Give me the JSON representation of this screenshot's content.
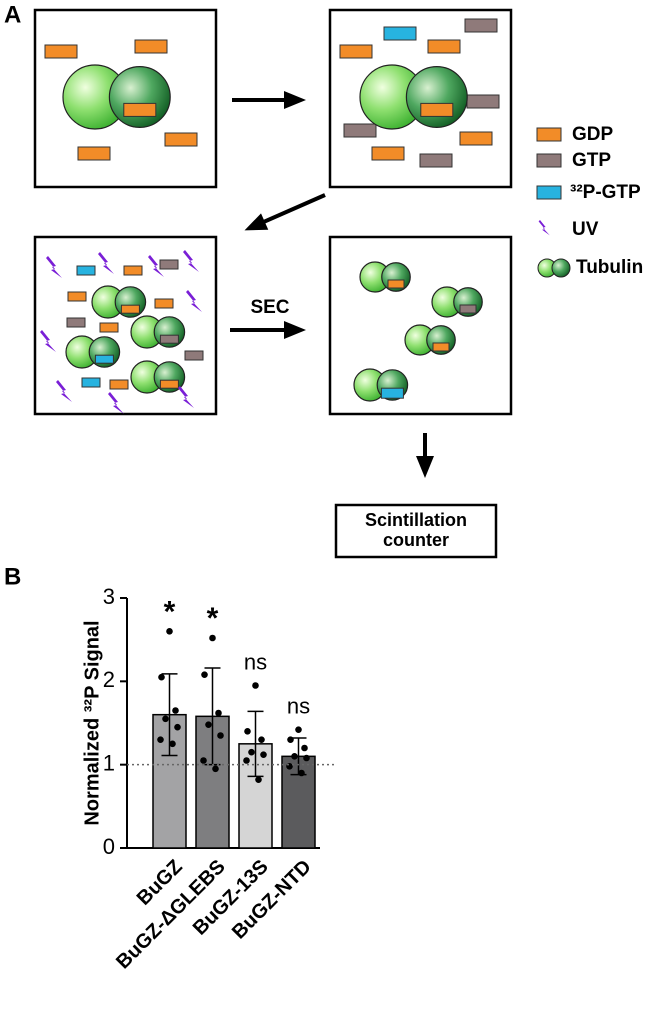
{
  "panel_a": {
    "label": "A",
    "legend": [
      "GDP",
      "GTP",
      "³²P-GTP",
      "UV",
      "Tubulin"
    ],
    "arrow_label": "SEC",
    "counter": [
      "Scintillation",
      "counter"
    ]
  },
  "chart_data": {
    "type": "bar",
    "panel_label": "B",
    "y_label": "Normalized ³²P Signal",
    "categories": [
      "BuGZ",
      "BuGZ-ΔGLEBS",
      "BuGZ-13S",
      "BuGZ-NTD"
    ],
    "values": [
      1.6,
      1.58,
      1.25,
      1.1
    ],
    "errors": [
      0.49,
      0.58,
      0.39,
      0.22
    ],
    "points": [
      [
        2.6,
        2.05,
        1.65,
        1.55,
        1.45,
        1.3,
        1.25
      ],
      [
        2.52,
        2.08,
        1.62,
        1.48,
        1.35,
        1.05,
        0.95
      ],
      [
        1.95,
        1.4,
        1.3,
        1.15,
        1.12,
        1.05,
        0.82
      ],
      [
        1.42,
        1.3,
        1.2,
        1.1,
        1.08,
        0.98,
        0.9
      ]
    ],
    "colors": [
      "#a3a3a5",
      "#7e7e80",
      "#d5d5d5",
      "#5b5b5d"
    ],
    "annotations": [
      "*",
      "*",
      "ns",
      "ns"
    ],
    "reference_line": 1,
    "ylim": [
      0,
      3
    ],
    "yticks": [
      0,
      1,
      2,
      3
    ]
  }
}
